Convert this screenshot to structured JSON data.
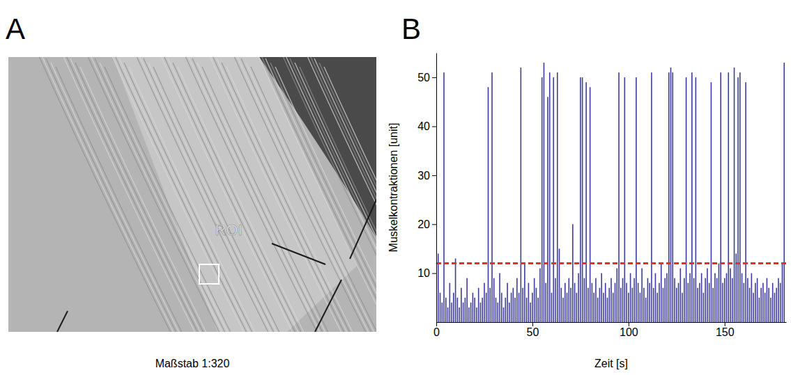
{
  "figure": {
    "panel_letters": [
      "A",
      "B"
    ]
  },
  "image_panel": {
    "label": "ROI",
    "caption": "Maßstab 1:320"
  },
  "chart_data": {
    "type": "bar",
    "x_label": "Zeit [s]",
    "y_label": "Muskelkontraktionen [unit]",
    "color": "#3d3d9c",
    "xlim": [
      0,
      182
    ],
    "ylim": [
      0,
      55
    ],
    "xticks": [
      0,
      50,
      100,
      150
    ],
    "yticks": [
      10,
      20,
      30,
      40,
      50
    ],
    "threshold": {
      "value": 12,
      "color": "#e3302a",
      "line_style": "dashed"
    },
    "x": [
      0,
      1,
      2,
      3,
      4,
      5,
      6,
      7,
      8,
      9,
      10,
      11,
      12,
      13,
      14,
      15,
      16,
      17,
      18,
      19,
      20,
      21,
      22,
      23,
      24,
      25,
      26,
      27,
      28,
      29,
      30,
      31,
      32,
      33,
      34,
      35,
      36,
      37,
      38,
      39,
      40,
      41,
      42,
      43,
      44,
      45,
      46,
      47,
      48,
      49,
      50,
      51,
      52,
      53,
      54,
      55,
      56,
      57,
      58,
      59,
      60,
      61,
      62,
      63,
      64,
      65,
      66,
      67,
      68,
      69,
      70,
      71,
      72,
      73,
      74,
      75,
      76,
      77,
      78,
      79,
      80,
      81,
      82,
      83,
      84,
      85,
      86,
      87,
      88,
      89,
      90,
      91,
      92,
      93,
      94,
      95,
      96,
      97,
      98,
      99,
      100,
      101,
      102,
      103,
      104,
      105,
      106,
      107,
      108,
      109,
      110,
      111,
      112,
      113,
      114,
      115,
      116,
      117,
      118,
      119,
      120,
      121,
      122,
      123,
      124,
      125,
      126,
      127,
      128,
      129,
      130,
      131,
      132,
      133,
      134,
      135,
      136,
      137,
      138,
      139,
      140,
      141,
      142,
      143,
      144,
      145,
      146,
      147,
      148,
      149,
      150,
      151,
      152,
      153,
      154,
      155,
      156,
      157,
      158,
      159,
      160,
      161,
      162,
      163,
      164,
      165,
      166,
      167,
      168,
      169,
      170,
      171,
      172,
      173,
      174,
      175,
      176,
      177,
      178,
      179,
      180,
      181
    ],
    "values": [
      3,
      14,
      6,
      4,
      51,
      5,
      3,
      8,
      4,
      6,
      13,
      5,
      3,
      7,
      4,
      5,
      9,
      3,
      4,
      6,
      5,
      3,
      7,
      4,
      5,
      8,
      6,
      48,
      7,
      51,
      9,
      5,
      4,
      10,
      6,
      3,
      5,
      8,
      4,
      6,
      7,
      5,
      9,
      6,
      52,
      7,
      12,
      5,
      8,
      4,
      6,
      9,
      7,
      5,
      11,
      50,
      53,
      8,
      46,
      51,
      6,
      50,
      9,
      51,
      15,
      7,
      5,
      8,
      6,
      9,
      7,
      20,
      8,
      6,
      10,
      50,
      50,
      9,
      49,
      7,
      48,
      8,
      6,
      9,
      5,
      7,
      10,
      6,
      8,
      5,
      7,
      9,
      6,
      8,
      11,
      51,
      7,
      9,
      50,
      8,
      6,
      10,
      7,
      9,
      50,
      8,
      6,
      11,
      7,
      5,
      9,
      8,
      51,
      7,
      10,
      6,
      8,
      12,
      7,
      9,
      10,
      51,
      52,
      51,
      9,
      7,
      8,
      11,
      6,
      9,
      50,
      8,
      10,
      51,
      9,
      50,
      7,
      8,
      10,
      6,
      9,
      11,
      8,
      49,
      7,
      10,
      9,
      12,
      51,
      8,
      9,
      10,
      51,
      11,
      9,
      52,
      14,
      50,
      51,
      10,
      8,
      49,
      9,
      7,
      10,
      6,
      8,
      9,
      5,
      7,
      8,
      6,
      9,
      7,
      5,
      8,
      6,
      7,
      9,
      8,
      12,
      53
    ]
  }
}
